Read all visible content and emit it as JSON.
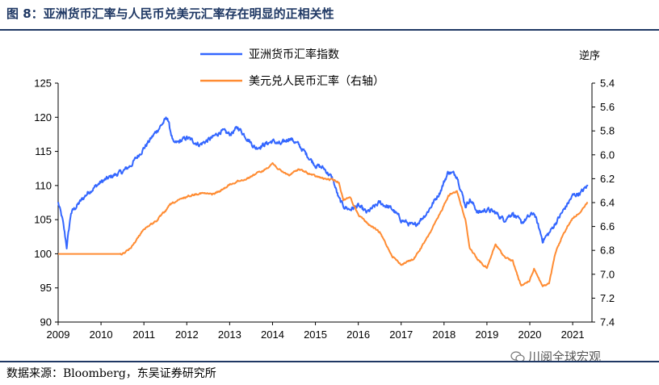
{
  "header": {
    "title": "图 8：亚洲货币汇率与人民币兑美元汇率存在明显的正相关性"
  },
  "footer": {
    "source": "数据来源：Bloomberg，东吴证券研究所",
    "watermark": "川阅全球宏观"
  },
  "chart_data": {
    "type": "line",
    "title": "图 8：亚洲货币汇率与人民币兑美元汇率存在明显的正相关性",
    "x": [
      2009.0,
      2009.1,
      2009.2,
      2009.3,
      2009.5,
      2009.7,
      2010.0,
      2010.3,
      2010.5,
      2010.7,
      2011.0,
      2011.3,
      2011.55,
      2011.6,
      2011.7,
      2012.0,
      2012.3,
      2012.6,
      2012.8,
      2013.0,
      2013.2,
      2013.4,
      2013.6,
      2013.8,
      2014.0,
      2014.2,
      2014.4,
      2014.6,
      2014.8,
      2015.0,
      2015.2,
      2015.4,
      2015.55,
      2015.65,
      2015.8,
      2016.0,
      2016.2,
      2016.5,
      2016.8,
      2017.0,
      2017.3,
      2017.6,
      2017.9,
      2018.1,
      2018.3,
      2018.5,
      2018.6,
      2018.8,
      2019.0,
      2019.2,
      2019.4,
      2019.6,
      2019.8,
      2020.0,
      2020.1,
      2020.3,
      2020.45,
      2020.6,
      2020.8,
      2021.0,
      2021.2,
      2021.35
    ],
    "series": [
      {
        "name": "亚洲货币汇率指数",
        "axis": "left",
        "color": "#3366ff",
        "values": [
          107.5,
          105,
          101,
          106,
          107.5,
          109,
          110.5,
          111.5,
          112,
          113,
          115.5,
          118,
          120,
          118.5,
          116,
          117,
          116,
          117,
          118,
          117.5,
          118.5,
          117,
          115.5,
          116,
          116.5,
          116,
          117,
          116,
          114.5,
          113,
          112.5,
          111,
          108,
          107,
          106.5,
          107,
          106,
          107.5,
          106.5,
          105,
          104,
          106,
          109,
          112,
          111.5,
          107,
          108,
          106,
          106.5,
          106,
          105,
          106,
          104.5,
          105.5,
          106,
          102,
          103,
          104.5,
          106.5,
          108.5,
          109,
          110
        ]
      },
      {
        "name": "美元兑人民币汇率（右轴）",
        "axis": "right",
        "color": "#ff8c33",
        "values": [
          6.83,
          6.83,
          6.83,
          6.83,
          6.83,
          6.83,
          6.83,
          6.83,
          6.83,
          6.78,
          6.62,
          6.55,
          6.45,
          6.42,
          6.4,
          6.35,
          6.32,
          6.33,
          6.3,
          6.25,
          6.22,
          6.2,
          6.16,
          6.13,
          6.07,
          6.14,
          6.17,
          6.12,
          6.15,
          6.18,
          6.2,
          6.21,
          6.23,
          6.38,
          6.35,
          6.5,
          6.57,
          6.65,
          6.85,
          6.92,
          6.87,
          6.7,
          6.5,
          6.34,
          6.3,
          6.55,
          6.78,
          6.88,
          6.95,
          6.75,
          6.85,
          6.89,
          7.1,
          7.05,
          6.95,
          7.1,
          7.08,
          6.82,
          6.65,
          6.53,
          6.47,
          6.4
        ]
      }
    ],
    "left_axis": {
      "ylim": [
        90,
        125
      ],
      "ticks": [
        90,
        95,
        100,
        105,
        110,
        115,
        120,
        125
      ]
    },
    "right_axis": {
      "ylim": [
        5.4,
        7.4
      ],
      "inverted": true,
      "title": "逆序",
      "ticks": [
        5.4,
        5.6,
        5.8,
        6.0,
        6.2,
        6.4,
        6.6,
        6.8,
        7.0,
        7.2,
        7.4
      ],
      "tick_labels": [
        "5.4",
        "5.6",
        "5.8",
        "6.0",
        "6.2",
        "6.4",
        "6.6",
        "6.8",
        "7.0",
        "7.2",
        "7.4"
      ]
    },
    "x_axis": {
      "xlim": [
        2009,
        2021.45
      ],
      "ticks": [
        2009,
        2010,
        2011,
        2012,
        2013,
        2014,
        2015,
        2016,
        2017,
        2018,
        2019,
        2020,
        2021
      ]
    },
    "legend": [
      {
        "label": "亚洲货币汇率指数",
        "color": "#3366ff"
      },
      {
        "label": "美元兑人民币汇率（右轴）",
        "color": "#ff8c33"
      }
    ],
    "legend_position": "top-center",
    "grid": false
  }
}
